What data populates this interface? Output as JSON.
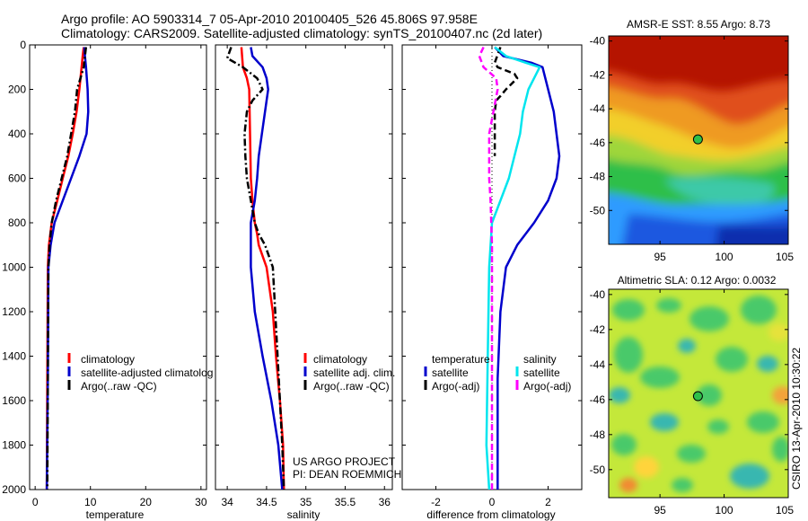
{
  "title": {
    "line1": "Argo profile: AO 5903314_7 05-Apr-2010 20100405_526 45.806S 97.958E",
    "line2": "Climatology: CARS2009. Satellite-adjusted climatology: synTS_20100407.nc (2d later)"
  },
  "credit": {
    "line1": "US ARGO PROJECT",
    "line2": "PI: DEAN ROEMMICH"
  },
  "vertical_stamp": "CSIRO 13-Apr-2010 10:30:22",
  "colors": {
    "climatology": "#ff0000",
    "satellite": "#0000cc",
    "argo": "#000000",
    "satellite_salinity": "#00e5ee",
    "argo_salinity": "#ff00ff"
  },
  "chart_data": [
    {
      "type": "line",
      "xlabel": "temperature",
      "ylabel": "",
      "xlim": [
        -1,
        31
      ],
      "ylim": [
        2000,
        0
      ],
      "xticks": [
        0,
        10,
        20,
        30
      ],
      "yticks": [
        0,
        200,
        400,
        600,
        800,
        1000,
        1200,
        1400,
        1600,
        1800,
        2000
      ],
      "legend_entries": [
        "climatology",
        "satellite-adjusted climatolog",
        "Argo(..raw -QC)"
      ],
      "series": [
        {
          "name": "climatology",
          "color": "#ff0000",
          "dash": "solid",
          "x": [
            8.8,
            8.6,
            8.4,
            8.0,
            7.5,
            6.8,
            6.0,
            5.0,
            4.0,
            3.0,
            2.5,
            2.3,
            2.2,
            2.1
          ],
          "y": [
            10,
            50,
            100,
            200,
            300,
            400,
            500,
            600,
            700,
            800,
            900,
            1000,
            1500,
            2000
          ]
        },
        {
          "name": "satellite-adjusted climatolog",
          "color": "#0000cc",
          "dash": "solid",
          "x": [
            8.9,
            9.0,
            9.2,
            9.5,
            9.6,
            9.3,
            8.0,
            6.5,
            5.0,
            3.5,
            2.8,
            2.4,
            2.3,
            2.1
          ],
          "y": [
            10,
            50,
            100,
            200,
            300,
            400,
            500,
            600,
            700,
            800,
            900,
            1000,
            1500,
            2000
          ]
        },
        {
          "name": "Argo(..raw -QC)",
          "color": "#000000",
          "dash": "dashdot",
          "x": [
            9.2,
            9.0,
            8.8,
            7.6,
            7.2,
            6.5,
            5.8,
            4.8,
            3.8,
            3.0,
            2.6,
            2.4,
            2.3,
            2.2
          ],
          "y": [
            10,
            50,
            100,
            200,
            300,
            400,
            500,
            600,
            700,
            800,
            900,
            1000,
            1500,
            2000
          ]
        }
      ]
    },
    {
      "type": "line",
      "xlabel": "salinity",
      "ylabel": "",
      "xlim": [
        33.85,
        36.1
      ],
      "ylim": [
        2000,
        0
      ],
      "xticks": [
        34,
        34.5,
        35,
        35.5,
        36
      ],
      "xticklabels": [
        "34",
        "34.5",
        "35",
        "35.5",
        "36"
      ],
      "legend_entries": [
        "climatology",
        "satellite adj. clim.",
        "Argo(..raw -QC)"
      ],
      "series": [
        {
          "name": "climatology",
          "color": "#ff0000",
          "dash": "solid",
          "x": [
            34.18,
            34.2,
            34.25,
            34.28,
            34.29,
            34.3,
            34.32,
            34.35,
            34.38,
            34.4,
            34.5,
            34.58,
            34.62,
            34.67,
            34.71,
            34.72
          ],
          "y": [
            10,
            100,
            150,
            200,
            400,
            600,
            700,
            800,
            850,
            900,
            1000,
            1200,
            1400,
            1600,
            1800,
            2000
          ]
        },
        {
          "name": "satellite adj. clim.",
          "color": "#0000cc",
          "dash": "solid",
          "x": [
            34.3,
            34.32,
            34.45,
            34.5,
            34.52,
            34.48,
            34.44,
            34.4,
            34.38,
            34.35,
            34.3,
            34.3,
            34.35,
            34.45,
            34.56,
            34.65,
            34.7
          ],
          "y": [
            10,
            50,
            100,
            150,
            200,
            300,
            400,
            500,
            600,
            700,
            800,
            1000,
            1200,
            1400,
            1600,
            1800,
            2000
          ]
        },
        {
          "name": "Argo(..raw -QC)",
          "color": "#000000",
          "dash": "dashdot",
          "x": [
            34.05,
            34.0,
            34.2,
            34.38,
            34.45,
            34.32,
            34.25,
            34.22,
            34.23,
            34.25,
            34.3,
            34.35,
            34.4,
            34.48,
            34.58,
            34.64,
            34.7,
            34.72
          ],
          "y": [
            10,
            60,
            100,
            150,
            200,
            250,
            300,
            400,
            500,
            600,
            700,
            800,
            850,
            900,
            1000,
            1400,
            1800,
            2000
          ]
        }
      ]
    },
    {
      "type": "line",
      "xlabel": "difference from climatology",
      "ylabel": "",
      "xlim": [
        -3.2,
        3.2
      ],
      "ylim": [
        2000,
        0
      ],
      "xticks": [
        -2,
        0,
        2
      ],
      "legend_groups": [
        {
          "heading": "temperature",
          "entries": [
            "satellite",
            "Argo(-adj)"
          ]
        },
        {
          "heading": "salinity",
          "entries": [
            "satellite",
            "Argo(-adj)"
          ]
        }
      ],
      "series": [
        {
          "name": "temperature satellite",
          "color": "#0000cc",
          "dash": "solid",
          "x": [
            0.1,
            0.4,
            1.4,
            1.8,
            1.9,
            2.2,
            2.4,
            2.3,
            2.0,
            1.5,
            0.9,
            0.5,
            0.3,
            0.2,
            0.2,
            0.2
          ],
          "y": [
            10,
            50,
            80,
            100,
            150,
            300,
            500,
            600,
            700,
            800,
            900,
            1000,
            1200,
            1500,
            1800,
            2000
          ]
        },
        {
          "name": "temperature Argo(-adj)",
          "color": "#000000",
          "dash": "dashed",
          "x": [
            0.3,
            0.1,
            0.2,
            0.8,
            0.9,
            0.5,
            0.3,
            0.15,
            0.1,
            0.1,
            0.1
          ],
          "y": [
            10,
            80,
            100,
            130,
            150,
            200,
            230,
            250,
            300,
            400,
            500
          ]
        },
        {
          "name": "salinity satellite",
          "color": "#00e5ee",
          "dash": "solid",
          "x": [
            0.1,
            0.5,
            1.2,
            1.7,
            1.5,
            1.3,
            1.1,
            1.0,
            0.8,
            0.6,
            0.3,
            0.0,
            -0.1,
            -0.15,
            -0.2,
            -0.1
          ],
          "y": [
            10,
            50,
            80,
            100,
            150,
            200,
            300,
            400,
            500,
            600,
            700,
            800,
            1000,
            1400,
            1800,
            2000
          ]
        },
        {
          "name": "salinity Argo(-adj)",
          "color": "#ff00ff",
          "dash": "dashed",
          "x": [
            -0.3,
            -0.45,
            -0.3,
            0.15,
            0.2,
            0.05,
            -0.1,
            -0.1,
            -0.05,
            0.0,
            0.0,
            0.0
          ],
          "y": [
            10,
            50,
            100,
            150,
            200,
            300,
            400,
            600,
            700,
            900,
            1000,
            2000
          ]
        }
      ]
    },
    {
      "type": "heatmap",
      "title": "AMSR-E SST: 8.55 Argo: 8.73",
      "xlim": [
        91,
        105
      ],
      "ylim": [
        -52,
        -39.7
      ],
      "xticks": [
        95,
        100,
        105
      ],
      "yticks": [
        -40,
        -42,
        -44,
        -46,
        -48,
        -50
      ],
      "marker": {
        "lon": 97.958,
        "lat": -45.806
      }
    },
    {
      "type": "heatmap",
      "title": "Altimetric SLA: 0.12 Argo: 0.0032",
      "xlim": [
        91,
        105
      ],
      "ylim": [
        -51.6,
        -39.7
      ],
      "xticks": [
        95,
        100,
        105
      ],
      "yticks": [
        -40,
        -42,
        -44,
        -46,
        -48,
        -50
      ],
      "marker": {
        "lon": 97.958,
        "lat": -45.806
      }
    }
  ]
}
